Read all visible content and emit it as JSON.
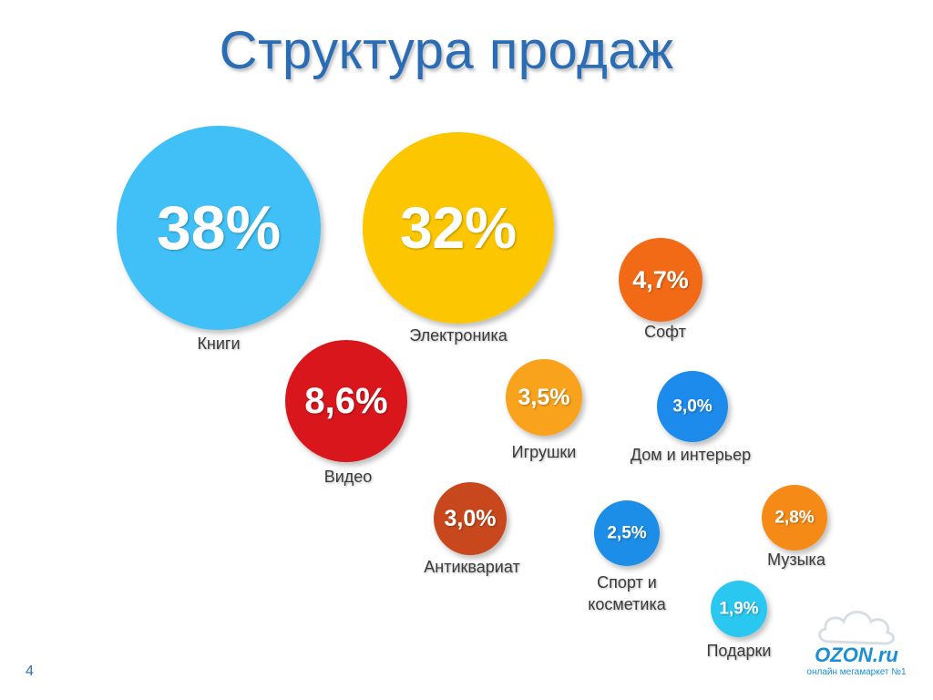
{
  "slide": {
    "title": "Структура продаж",
    "page_number": "4"
  },
  "logo": {
    "text": "OZON.ru",
    "subtitle": "онлайн мегамаркет №1"
  },
  "chart_data": {
    "type": "bubble",
    "title": "Структура продаж",
    "unit": "%",
    "series": [
      {
        "name": "Книги",
        "label": "38%",
        "value": 38.0,
        "color": "#3fc0f6"
      },
      {
        "name": "Электроника",
        "label": "32%",
        "value": 32.0,
        "color": "#fcc600"
      },
      {
        "name": "Софт",
        "label": "4,7%",
        "value": 4.7,
        "color": "#f26a16"
      },
      {
        "name": "Видео",
        "label": "8,6%",
        "value": 8.6,
        "color": "#d8171d"
      },
      {
        "name": "Игрушки",
        "label": "3,5%",
        "value": 3.5,
        "color": "#f9a21e"
      },
      {
        "name": "Дом и интерьер",
        "label": "3,0%",
        "value": 3.0,
        "color": "#1f8bec"
      },
      {
        "name": "Антиквариат",
        "label": "3,0%",
        "value": 3.0,
        "color": "#c9461a"
      },
      {
        "name": "Спорт и косметика",
        "label": "2,5%",
        "value": 2.5,
        "color": "#1e8ee7"
      },
      {
        "name": "Музыка",
        "label": "2,8%",
        "value": 2.8,
        "color": "#f68a13"
      },
      {
        "name": "Подарки",
        "label": "1,9%",
        "value": 1.9,
        "color": "#2cc8f0"
      }
    ]
  }
}
